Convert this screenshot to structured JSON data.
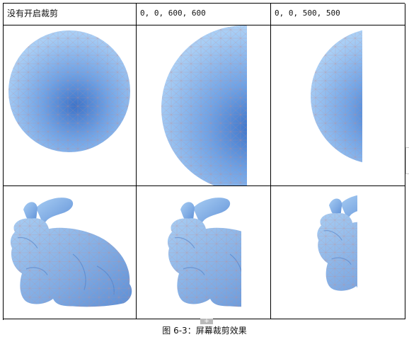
{
  "table": {
    "headers": [
      "没有开启裁剪",
      "0, 0, 600, 600",
      "0, 0, 500, 500"
    ]
  },
  "caption": "图 6-3：屏幕裁剪效果",
  "colors": {
    "sphere_light": "#9fc8f4",
    "sphere_mid": "#6fa3e6",
    "sphere_dark": "#3d74c9",
    "mesh": "#c58a8a",
    "bunny": "#86b2e6"
  },
  "icons": {
    "scroll_tab": "plus-icon"
  }
}
